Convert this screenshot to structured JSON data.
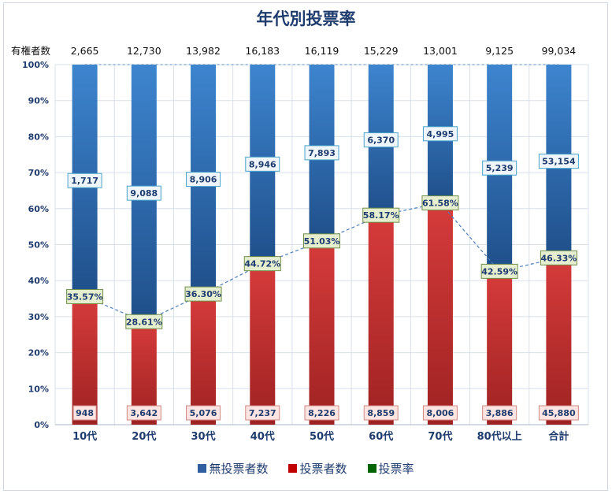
{
  "chart_data": {
    "type": "bar",
    "title": "年代別投票率",
    "row_label": "有権者数",
    "categories": [
      "10代",
      "20代",
      "30代",
      "40代",
      "50代",
      "60代",
      "70代",
      "80代以上",
      "合計"
    ],
    "eligible_voters": [
      "2,665",
      "12,730",
      "13,982",
      "16,183",
      "16,119",
      "15,229",
      "13,001",
      "9,125",
      "99,034"
    ],
    "series": [
      {
        "name": "無投票者数",
        "kind": "stacked-bar",
        "color": "#2f5f9e",
        "values": [
          1717,
          9088,
          8906,
          8946,
          7893,
          6370,
          4995,
          5239,
          53154
        ],
        "labels": [
          "1,717",
          "9,088",
          "8,906",
          "8,946",
          "7,893",
          "6,370",
          "4,995",
          "5,239",
          "53,154"
        ]
      },
      {
        "name": "投票者数",
        "kind": "stacked-bar",
        "color": "#c00000",
        "values": [
          948,
          3642,
          5076,
          7237,
          8226,
          8859,
          8006,
          3886,
          45880
        ],
        "labels": [
          "948",
          "3,642",
          "5,076",
          "7,237",
          "8,226",
          "8,859",
          "8,006",
          "3,886",
          "45,880"
        ]
      },
      {
        "name": "投票率",
        "kind": "line",
        "color": "#006400",
        "values": [
          35.57,
          28.61,
          36.3,
          44.72,
          51.03,
          58.17,
          61.58,
          42.59,
          46.33
        ],
        "labels": [
          "35.57%",
          "28.61%",
          "36.30%",
          "44.72%",
          "51.03%",
          "58.17%",
          "61.58%",
          "42.59%",
          "46.33%"
        ]
      }
    ],
    "y_ticks": [
      "0%",
      "10%",
      "20%",
      "30%",
      "40%",
      "50%",
      "60%",
      "70%",
      "80%",
      "90%",
      "100%"
    ],
    "ylim": [
      0,
      100
    ],
    "stacked_percent": true,
    "grid": true,
    "legend_position": "bottom"
  }
}
